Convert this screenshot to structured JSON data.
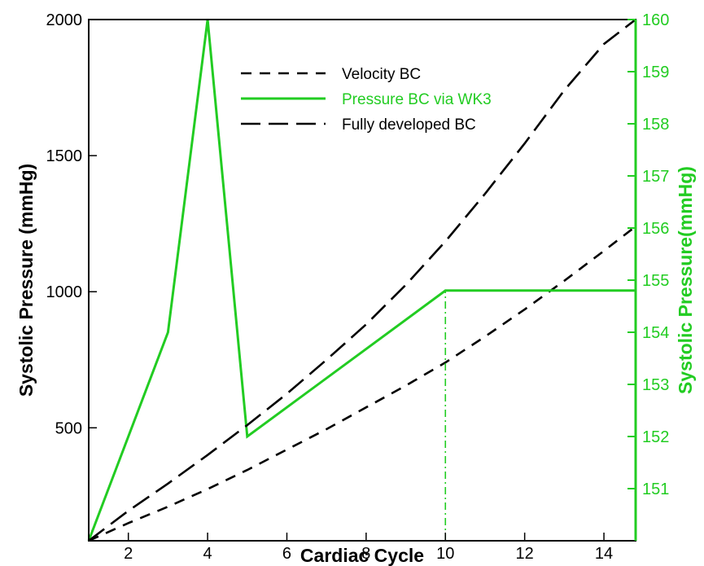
{
  "chart_data": {
    "type": "line",
    "xlabel": "Cardiac Cycle",
    "ylabel_left": "Systolic Pressure (mmHg)",
    "ylabel_right": "Systolic Pressure(mmHg)",
    "xlim": [
      1,
      14.8
    ],
    "ylim_left": [
      85,
      2000
    ],
    "ylim_right": [
      150,
      160
    ],
    "x_ticks": [
      2,
      4,
      6,
      8,
      10,
      12,
      14
    ],
    "y_left_ticks": [
      500,
      1000,
      1500,
      2000
    ],
    "y_right_ticks": [
      151,
      152,
      153,
      154,
      155,
      156,
      157,
      158,
      159,
      160
    ],
    "grid": false,
    "legend_position": "top-center",
    "series": [
      {
        "name": "Velocity BC",
        "axis": "left",
        "style": "short-dash",
        "color": "#000000",
        "x": [
          1,
          2,
          3,
          4,
          5,
          6,
          7,
          8,
          9,
          10,
          11,
          12,
          13,
          14,
          14.8
        ],
        "y": [
          85,
          150,
          210,
          275,
          345,
          420,
          495,
          575,
          655,
          740,
          835,
          935,
          1040,
          1150,
          1240
        ]
      },
      {
        "name": "Pressure BC via WK3",
        "axis": "right",
        "style": "solid",
        "color": "#22cc22",
        "x": [
          1,
          3,
          4,
          5,
          10,
          14.8
        ],
        "y": [
          150,
          154,
          160,
          152,
          154.8,
          154.8
        ]
      },
      {
        "name": "Fully developed BC",
        "axis": "left",
        "style": "long-dash",
        "color": "#000000",
        "x": [
          1,
          2,
          3,
          4,
          5,
          6,
          7,
          8,
          9,
          10,
          11,
          12,
          13,
          14,
          14.8
        ],
        "y": [
          85,
          195,
          295,
          400,
          510,
          625,
          750,
          880,
          1025,
          1185,
          1360,
          1545,
          1740,
          1910,
          2000
        ]
      }
    ],
    "annotations": [
      {
        "type": "vertical-line",
        "x": 10,
        "axis": "right",
        "y_from": 150,
        "y_to": 154.8,
        "style": "dash-dot",
        "color": "#22cc22"
      }
    ],
    "colors": {
      "left_axis": "#000000",
      "right_axis": "#22cc22"
    }
  }
}
